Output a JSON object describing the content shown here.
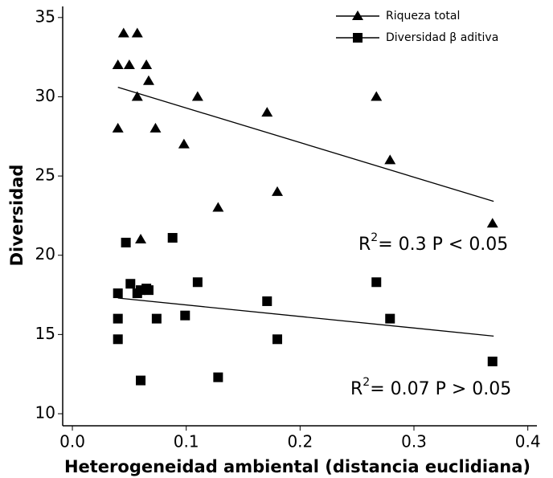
{
  "chart_data": {
    "type": "scatter",
    "x_label": "Heterogeneidad ambiental (distancia euclidiana)",
    "y_label": "Diversidad",
    "xlim": [
      -0.0085,
      0.408
    ],
    "ylim": [
      9.24,
      35.7
    ],
    "xticks": [
      {
        "value": 0,
        "label": "0.0"
      },
      0.1,
      0.2,
      0.3,
      0.4
    ],
    "yticks": [
      10,
      15,
      20,
      25,
      30,
      35
    ],
    "legend": "upper right",
    "series": [
      {
        "name": "Riqueza total",
        "marker": "triangle",
        "color": "#000000",
        "x": [
          0.04,
          0.045,
          0.05,
          0.057,
          0.065,
          0.067,
          0.057,
          0.04,
          0.073,
          0.098,
          0.11,
          0.06,
          0.128,
          0.171,
          0.18,
          0.267,
          0.279,
          0.369
        ],
        "values": [
          32,
          34,
          32,
          34,
          32,
          31,
          30,
          28,
          28,
          27,
          30,
          21,
          23,
          29,
          24,
          30,
          26,
          22
        ],
        "trend": {
          "x": [
            0.04,
            0.37
          ],
          "values": [
            30.6,
            23.4
          ]
        }
      },
      {
        "name": "Diversidad β aditiva",
        "marker": "square",
        "color": "#000000",
        "x": [
          0.047,
          0.088,
          0.04,
          0.051,
          0.057,
          0.06,
          0.065,
          0.067,
          0.11,
          0.04,
          0.074,
          0.099,
          0.04,
          0.06,
          0.128,
          0.171,
          0.18,
          0.267,
          0.279,
          0.369
        ],
        "values": [
          20.8,
          21.1,
          17.6,
          18.2,
          17.6,
          17.8,
          17.9,
          17.8,
          18.3,
          16,
          16,
          16.2,
          14.7,
          12.1,
          12.3,
          17.1,
          14.7,
          18.3,
          16,
          13.3
        ],
        "trend": {
          "x": [
            0.04,
            0.37
          ],
          "values": [
            17.3,
            14.9
          ]
        }
      }
    ],
    "annotations": [
      {
        "base": "R",
        "sup": "2",
        "rest": "= 0.3 P < 0.05"
      },
      {
        "base": "R",
        "sup": "2",
        "rest": "= 0.07 P > 0.05"
      }
    ]
  }
}
